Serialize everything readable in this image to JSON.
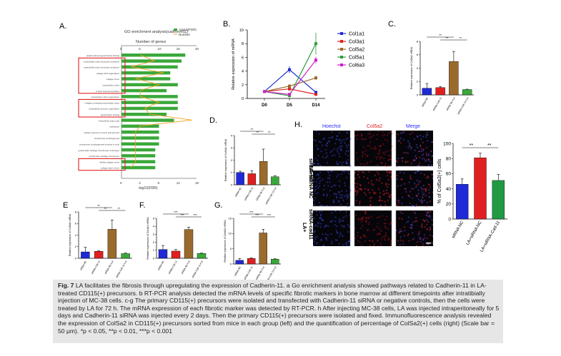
{
  "panel_letters": {
    "A": "A.",
    "B": "B.",
    "C": "C.",
    "D": "D.",
    "E": "E",
    "F": "F.",
    "G": "G.",
    "H": "H."
  },
  "colors": {
    "blue": "#1f2ad6",
    "red": "#e02020",
    "brown": "#9a6a2c",
    "green": "#2e9e3a",
    "magenta": "#cc22cc",
    "bar_green": "#3aa83a",
    "line_orange": "#f0a020",
    "box_red": "#e02020"
  },
  "panel_a": {
    "title": "GO enrichment analysis(cadherin11)",
    "top_label": "Number of genes",
    "bottom_label": "-log10(FDR)",
    "legend": [
      "-log10(FDR)",
      "Number"
    ],
    "top_ticks": [
      "0",
      "5",
      "10",
      "15",
      "20"
    ],
    "bottom_ticks": [
      "0",
      "4",
      "8",
      "12",
      "16"
    ],
    "terms": [
      "platelet-derived growth factor binding",
      "extracellular matrix structural constituent",
      "extracellular matrix structural constituent",
      "collagen fibril organization",
      "collagen trimer",
      "extracellular matrix",
      "protein heterotrimerization",
      "extracellular matrix organization",
      "collagen-containing extracellular matrix",
      "extracellular structure organization",
      "growth factor binding",
      "extracellular region part",
      "ossification",
      "cellular response to amino acid stimulus",
      "chondrocyte morphogenesis",
      "chondrocyte morphogenesis involved in endo",
      "growth plate cartilage chondrocyte morphogen",
      "growth plate cartilage chondrocyte",
      "fibrillar collagen trimer",
      "collagen type I trimer"
    ],
    "counts": [
      17,
      16,
      15,
      13,
      13,
      15,
      12,
      15,
      15,
      15,
      12,
      14,
      10,
      10,
      10,
      10,
      9,
      9,
      9,
      9
    ],
    "neglog10_fdr": [
      4,
      7,
      2,
      9,
      3,
      8,
      4,
      4,
      8,
      5,
      6,
      15,
      4,
      3,
      3,
      3,
      3,
      3,
      3,
      2
    ],
    "boxed_groups": [
      [
        1,
        6
      ],
      [
        8,
        10
      ],
      [
        18,
        19
      ]
    ]
  },
  "panel_b": {
    "chart_data": {
      "type": "line",
      "x": [
        "D0",
        "D5",
        "D14"
      ],
      "ylabel": "Relative expression of mRNA",
      "ylim": [
        0,
        10
      ],
      "yticks": [
        0,
        2,
        4,
        6,
        8,
        10
      ],
      "series": [
        {
          "name": "Col1a1",
          "values": [
            1.0,
            4.2,
            0.9
          ],
          "err": [
            0.1,
            0.5,
            0.2
          ],
          "color": "#1f2ad6"
        },
        {
          "name": "Col3a1",
          "values": [
            1.0,
            1.4,
            0.6
          ],
          "err": [
            0.1,
            0.3,
            0.1
          ],
          "color": "#e02020"
        },
        {
          "name": "Col5a2",
          "values": [
            1.0,
            1.8,
            3.0
          ],
          "err": [
            0.1,
            0.3,
            0.3
          ],
          "color": "#9a6a2c"
        },
        {
          "name": "Col5a1",
          "values": [
            1.0,
            0.4,
            8.0
          ],
          "err": [
            0.1,
            0.2,
            1.6
          ],
          "color": "#2e9e3a"
        },
        {
          "name": "Col6a3",
          "values": [
            1.0,
            0.6,
            5.6
          ],
          "err": [
            0.1,
            0.2,
            0.5
          ],
          "color": "#cc22cc"
        }
      ]
    }
  },
  "bar_panels": [
    {
      "id": "C",
      "ylabel": "Relative expression of Col5a2 mRNA",
      "ylim": [
        0,
        8
      ],
      "yticks": [
        0,
        2,
        4,
        6,
        8
      ],
      "categories": [
        "siRNA NC",
        "siRNA-Cdh 11",
        "siRNA NC+LA",
        "siRNA-Cdh 11+LA"
      ],
      "values": [
        1.0,
        1.1,
        5.0,
        0.8
      ],
      "err": [
        0.7,
        0.15,
        1.5,
        0.05
      ],
      "sig": [
        {
          "from": 0,
          "to": 2,
          "label": "**"
        },
        {
          "from": 1,
          "to": 2,
          "label": "**"
        },
        {
          "from": 2,
          "to": 3,
          "label": "**"
        }
      ]
    },
    {
      "id": "D",
      "ylabel": "Relative expression of Col3a1 mRNA",
      "ylim": [
        0,
        4
      ],
      "yticks": [
        0,
        1,
        2,
        3,
        4
      ],
      "categories": [
        "siRNA NC",
        "siRNA-Cdh 11",
        "siRNA NC+LA",
        "siRNA-Cdh 11+LA"
      ],
      "values": [
        1.0,
        0.9,
        1.9,
        0.65
      ],
      "err": [
        0.1,
        0.25,
        1.0,
        0.1
      ],
      "sig": [
        {
          "from": 0,
          "to": 2,
          "label": "**"
        },
        {
          "from": 1,
          "to": 2,
          "label": "**"
        },
        {
          "from": 2,
          "to": 3,
          "label": "**"
        }
      ]
    },
    {
      "id": "E",
      "ylabel": "Relative expression of Col5a1 mRNA",
      "ylim": [
        0,
        8
      ],
      "yticks": [
        0,
        2,
        4,
        6,
        8
      ],
      "categories": [
        "siRNA NC",
        "siRNA-Cdh 11",
        "siRNA NC+LA",
        "siRNA-Cdh 11+LA"
      ],
      "values": [
        1.1,
        1.2,
        5.0,
        0.8
      ],
      "err": [
        0.8,
        0.1,
        1.6,
        0.1
      ],
      "sig": [
        {
          "from": 0,
          "to": 2,
          "label": "**"
        },
        {
          "from": 1,
          "to": 2,
          "label": "**"
        },
        {
          "from": 2,
          "to": 3,
          "label": "**"
        }
      ]
    },
    {
      "id": "F",
      "ylabel": "Relative expression of Col1a1 mRNA",
      "ylim": [
        0,
        5
      ],
      "yticks": [
        0,
        1,
        2,
        3,
        4,
        5
      ],
      "categories": [
        "siRNA NC",
        "siRNA-Cdh 11",
        "siRNA NC+LA",
        "siRNA-Cdh 11+LA"
      ],
      "values": [
        1.1,
        0.9,
        3.6,
        0.6
      ],
      "err": [
        0.5,
        0.2,
        0.3,
        0.05
      ],
      "sig": [
        {
          "from": 0,
          "to": 2,
          "label": "***"
        },
        {
          "from": 1,
          "to": 2,
          "label": "***"
        },
        {
          "from": 2,
          "to": 3,
          "label": "***"
        }
      ]
    },
    {
      "id": "G",
      "ylabel": "Relative expression of Col6a3 mRNA",
      "ylim": [
        0,
        15
      ],
      "yticks": [
        0,
        5,
        10,
        15
      ],
      "categories": [
        "siRNA NC",
        "siRNA-Cdh 11",
        "siRNA NC+LA",
        "siRNA-Cdh 11+LA"
      ],
      "values": [
        1.2,
        1.8,
        10.2,
        1.6
      ],
      "err": [
        0.6,
        0.2,
        1.2,
        0.1
      ],
      "sig": [
        {
          "from": 0,
          "to": 2,
          "label": "***"
        },
        {
          "from": 1,
          "to": 2,
          "label": "***"
        },
        {
          "from": 2,
          "to": 3,
          "label": "***"
        }
      ]
    },
    {
      "id": "H2",
      "ylabel": "% of Col5a2(+) cells",
      "ylim": [
        0,
        100
      ],
      "yticks": [
        0,
        20,
        40,
        60,
        80,
        100
      ],
      "categories": [
        "siRNA NC",
        "LA+siRNA NC",
        "LA+siRNA-Cad-11"
      ],
      "values": [
        46,
        81,
        51
      ],
      "err": [
        7,
        6,
        8
      ],
      "sig": [
        {
          "from": 0,
          "to": 1,
          "label": "**"
        },
        {
          "from": 1,
          "to": 2,
          "label": "**"
        }
      ]
    }
  ],
  "panel_h": {
    "col_headers": [
      "Hoechst",
      "Col5a2",
      "Merge"
    ],
    "row_labels": [
      "siRNA NC",
      "LA+siRNA NC",
      "LA+\nsiRNA-cad11"
    ]
  },
  "caption": {
    "fig_label": "Fig. 7",
    "title": "LA facilitates the fibrosis through upregulating the expression of Cadherin-11.",
    "body": "a Go enrichment analysis showed pathways related to Cadherin-11 in LA-treated CD115(+) precursors. b RT-PCR analysis detected the mRNA levels of specific fibrotic markers in bone marrow at different timepoints after intratibially injection of MC-38 cells. c-g The primary CD115(+) precursors were isolated and transfected with Cadherin-11 siRNA or negative controls, then the cells were treated by LA for 72 h. The mRNA expression of each fibrotic marker was detected by RT-PCR. h After injecting MC-38 cells, LA was injected intraperitoneally for 5 days and Cadherin-11 siRNA was injected every 2 days. Then the primary CD115(+) precursors were isolated and fixed. Immunofluorescence analysis revealed the expression of ColSa2 in CD115(+) precursors sorted from mice in each group (left) and the quantification of percentage of ColSa2(+) cells (right) (Scale bar = 50 μm). *p < 0.05, **p < 0.01, ***p < 0.001"
  }
}
